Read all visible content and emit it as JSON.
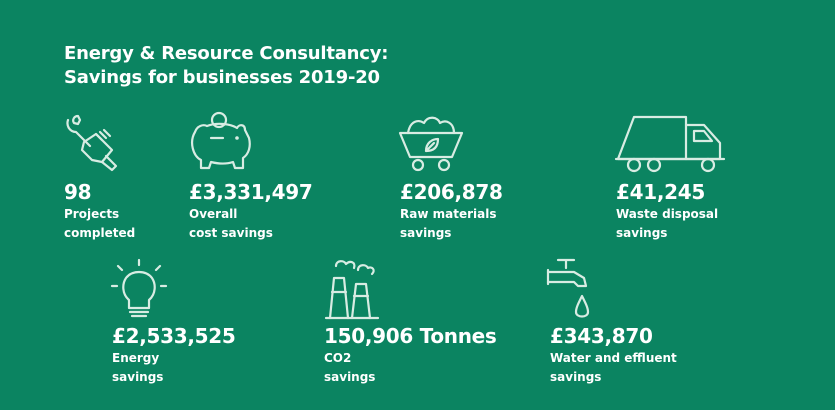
{
  "title": {
    "line1": "Energy & Resource Consultancy:",
    "line2": "Savings for businesses 2019-20"
  },
  "stats": [
    {
      "icon": "wrench-hand-icon",
      "value": "98",
      "label1": "Projects",
      "label2": "completed"
    },
    {
      "icon": "piggy-bank-icon",
      "value": "£3,331,497",
      "label1": "Overall",
      "label2": "cost savings"
    },
    {
      "icon": "mining-cart-icon",
      "value": "£206,878",
      "label1": "Raw materials",
      "label2": "savings"
    },
    {
      "icon": "garbage-truck-icon",
      "value": "£41,245",
      "label1": "Waste disposal",
      "label2": "savings"
    },
    {
      "icon": "light-bulb-icon",
      "value": "£2,533,525",
      "label1": "Energy",
      "label2": "savings"
    },
    {
      "icon": "factory-chimney-icon",
      "value": "150,906 Tonnes",
      "label1": "CO2",
      "label2": "savings"
    },
    {
      "icon": "water-tap-icon",
      "value": "£343,870",
      "label1": "Water and effluent",
      "label2": "savings"
    }
  ],
  "colors": {
    "background": "#0b8461",
    "text": "#ffffff",
    "icon_stroke": "#d8ece3"
  }
}
